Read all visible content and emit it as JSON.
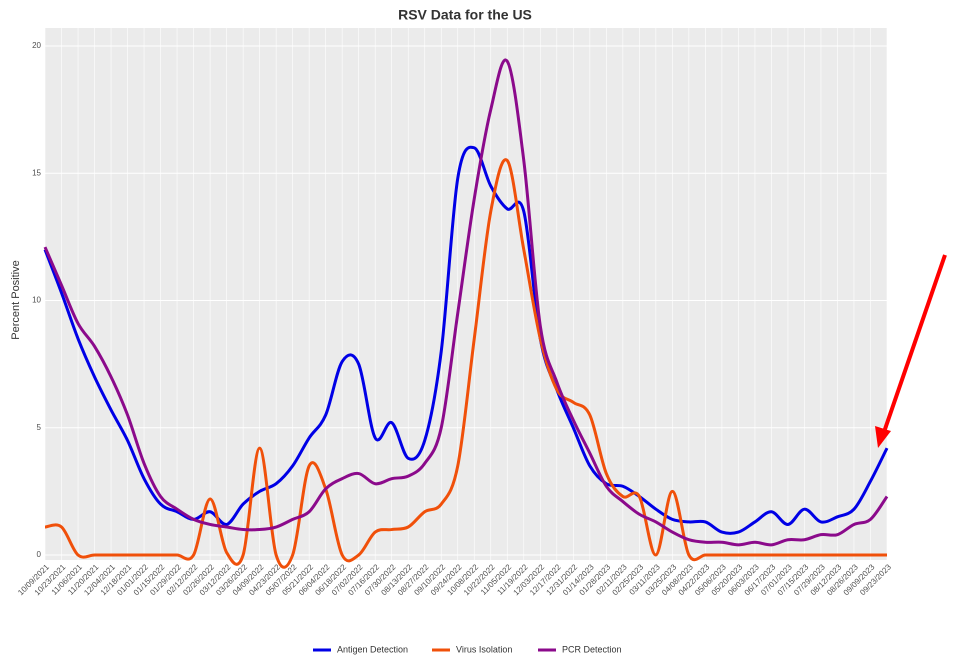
{
  "chart_data": {
    "type": "line",
    "title": "RSV Data for the US",
    "y_label": "Percent Positive",
    "categories": [
      "10/09/2021",
      "10/23/2021",
      "11/06/2021",
      "11/20/2021",
      "12/04/2021",
      "12/18/2021",
      "01/01/2022",
      "01/15/2022",
      "01/29/2022",
      "02/12/2022",
      "02/26/2022",
      "03/12/2022",
      "03/26/2022",
      "04/09/2022",
      "04/23/2022",
      "05/07/2022",
      "05/21/2022",
      "06/04/2022",
      "06/18/2022",
      "07/02/2022",
      "07/16/2022",
      "07/30/2022",
      "08/13/2022",
      "08/27/2022",
      "09/10/2022",
      "09/24/2022",
      "10/08/2022",
      "10/22/2022",
      "11/05/2022",
      "11/19/2022",
      "12/03/2022",
      "12/17/2022",
      "12/31/2022",
      "01/14/2023",
      "01/28/2023",
      "02/11/2023",
      "02/25/2023",
      "03/11/2023",
      "03/25/2023",
      "04/08/2023",
      "04/22/2023",
      "05/06/2023",
      "05/20/2023",
      "06/03/2023",
      "06/17/2023",
      "07/01/2023",
      "07/15/2023",
      "07/29/2023",
      "08/12/2023",
      "08/26/2023",
      "09/09/2023",
      "09/23/2023"
    ],
    "series": [
      {
        "name": "Antigen Detection",
        "color": "#0000e6",
        "values": [
          12,
          10.3,
          8.5,
          7.0,
          5.7,
          4.5,
          3.0,
          2.0,
          1.7,
          1.4,
          1.7,
          1.2,
          2.0,
          2.5,
          2.8,
          3.5,
          4.6,
          5.5,
          7.6,
          7.5,
          4.6,
          5.2,
          3.8,
          4.5,
          8.0,
          14.8,
          16.0,
          14.5,
          13.6,
          13.5,
          8.5,
          6.5,
          5.0,
          3.5,
          2.8,
          2.7,
          2.3,
          1.8,
          1.4,
          1.3,
          1.3,
          0.9,
          0.9,
          1.3,
          1.7,
          1.2,
          1.8,
          1.3,
          1.5,
          1.8,
          2.9,
          4.2
        ]
      },
      {
        "name": "Virus Isolation",
        "color": "#f0500a",
        "values": [
          1.1,
          1.1,
          0,
          0,
          0,
          0,
          0,
          0,
          0,
          0,
          2.2,
          0.1,
          0,
          4.2,
          0,
          0,
          3.5,
          2.6,
          0,
          0,
          0.9,
          1.0,
          1.1,
          1.7,
          2.0,
          3.5,
          8.5,
          13.5,
          15.5,
          12.0,
          8.5,
          6.5,
          6.0,
          5.5,
          3.2,
          2.3,
          2.3,
          0,
          2.5,
          0,
          0,
          0,
          0,
          0,
          0,
          0,
          0,
          0,
          0,
          0,
          0,
          0
        ]
      },
      {
        "name": "PCR Detection",
        "color": "#8b0a8b",
        "values": [
          12.1,
          10.6,
          9.1,
          8.2,
          7.0,
          5.5,
          3.6,
          2.3,
          1.8,
          1.4,
          1.2,
          1.1,
          1.0,
          1.0,
          1.1,
          1.4,
          1.7,
          2.6,
          3.0,
          3.2,
          2.8,
          3.0,
          3.1,
          3.6,
          5.0,
          9.5,
          14.0,
          17.5,
          19.4,
          15.5,
          9.0,
          6.8,
          5.3,
          4.0,
          2.7,
          2.1,
          1.6,
          1.3,
          0.9,
          0.6,
          0.5,
          0.5,
          0.4,
          0.5,
          0.4,
          0.6,
          0.6,
          0.8,
          0.8,
          1.2,
          1.4,
          2.3
        ]
      }
    ],
    "ylim": [
      0,
      20
    ],
    "yticks": [
      0,
      5,
      10,
      15,
      20
    ],
    "grid": true
  }
}
